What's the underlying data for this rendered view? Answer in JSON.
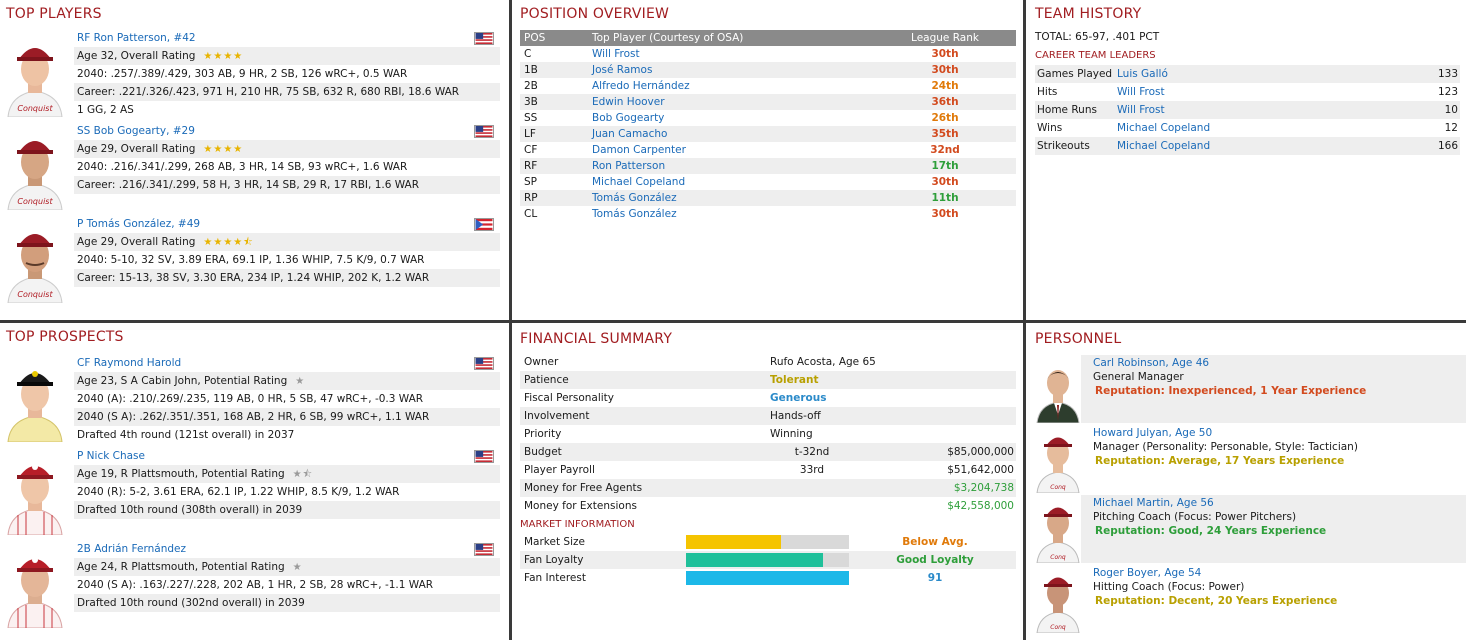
{
  "top_players": {
    "title": "TOP PLAYERS",
    "players": [
      {
        "name": "RF Ron Patterson, #42",
        "age_line": "Age 32, Overall Rating",
        "stars": "★★★★",
        "line2": "2040: .257/.389/.429, 303 AB, 9 HR, 2 SB, 126 wRC+, 0.5 WAR",
        "line3": "Career: .221/.326/.423, 971 H, 210 HR, 75 SB, 632 R, 680 RBI, 18.6 WAR",
        "line4": "1 GG, 2 AS",
        "flag": "usa"
      },
      {
        "name": "SS Bob Gogearty, #29",
        "age_line": "Age 29, Overall Rating",
        "stars": "★★★★",
        "line2": "2040: .216/.341/.299, 268 AB, 3 HR, 14 SB, 93 wRC+, 1.6 WAR",
        "line3": "Career: .216/.341/.299, 58 H, 3 HR, 14 SB, 29 R, 17 RBI, 1.6 WAR",
        "line4": "",
        "flag": "usa"
      },
      {
        "name": "P Tomás González, #49",
        "age_line": "Age 29, Overall Rating",
        "stars": "★★★★⯪",
        "line2": "2040: 5-10, 32 SV, 3.89 ERA, 69.1 IP, 1.36 WHIP, 7.5 K/9, 0.7 WAR",
        "line3": "Career: 15-13, 38 SV, 3.30 ERA, 234 IP, 1.24 WHIP, 202 K, 1.2 WAR",
        "line4": "",
        "flag": "pr"
      }
    ]
  },
  "position_overview": {
    "title": "POSITION OVERVIEW",
    "headers": [
      "POS",
      "Top Player (Courtesy of OSA)",
      "League Rank"
    ],
    "rows": [
      {
        "pos": "C",
        "player": "Will Frost",
        "rank": "30th",
        "cls": "red"
      },
      {
        "pos": "1B",
        "player": "José Ramos",
        "rank": "30th",
        "cls": "red"
      },
      {
        "pos": "2B",
        "player": "Alfredo Hernández",
        "rank": "24th",
        "cls": "orange"
      },
      {
        "pos": "3B",
        "player": "Edwin Hoover",
        "rank": "36th",
        "cls": "red"
      },
      {
        "pos": "SS",
        "player": "Bob Gogearty",
        "rank": "26th",
        "cls": "orange"
      },
      {
        "pos": "LF",
        "player": "Juan Camacho",
        "rank": "35th",
        "cls": "red"
      },
      {
        "pos": "CF",
        "player": "Damon Carpenter",
        "rank": "32nd",
        "cls": "red"
      },
      {
        "pos": "RF",
        "player": "Ron Patterson",
        "rank": "17th",
        "cls": "green"
      },
      {
        "pos": "SP",
        "player": "Michael Copeland",
        "rank": "30th",
        "cls": "red"
      },
      {
        "pos": "RP",
        "player": "Tomás González",
        "rank": "11th",
        "cls": "green"
      },
      {
        "pos": "CL",
        "player": "Tomás González",
        "rank": "30th",
        "cls": "red"
      }
    ]
  },
  "team_history": {
    "title": "TEAM HISTORY",
    "total": "TOTAL: 65-97, .401 PCT",
    "leaders_title": "CAREER TEAM LEADERS",
    "leaders": [
      {
        "stat": "Games Played",
        "player": "Luis Galló",
        "value": "133"
      },
      {
        "stat": "Hits",
        "player": "Will Frost",
        "value": "123"
      },
      {
        "stat": "Home Runs",
        "player": "Will Frost",
        "value": "10"
      },
      {
        "stat": "Wins",
        "player": "Michael Copeland",
        "value": "12"
      },
      {
        "stat": "Strikeouts",
        "player": "Michael Copeland",
        "value": "166"
      }
    ]
  },
  "top_prospects": {
    "title": "TOP PROSPECTS",
    "players": [
      {
        "name": "CF Raymond Harold",
        "age_line": "Age 23, S A Cabin John, Potential Rating",
        "stars": "★",
        "line2": "2040 (A): .210/.269/.235, 119 AB, 0 HR, 5 SB, 47 wRC+, -0.3 WAR",
        "line3": "2040 (S A): .262/.351/.351, 168 AB, 2 HR, 6 SB, 99 wRC+, 1.1 WAR",
        "line4": "Drafted 4th round (121st overall) in 2037",
        "flag": "usa"
      },
      {
        "name": "P Nick Chase",
        "age_line": "Age 19, R Plattsmouth, Potential Rating",
        "stars": "★⯪",
        "line2": "2040 (R): 5-2, 3.61 ERA, 62.1 IP, 1.22 WHIP, 8.5 K/9, 1.2 WAR",
        "line3": "Drafted 10th round (308th overall) in 2039",
        "line4": "",
        "flag": "usa"
      },
      {
        "name": "2B Adrián Fernández",
        "age_line": "Age 24, R Plattsmouth, Potential Rating",
        "stars": "★",
        "line2": "2040 (S A): .163/.227/.228, 202 AB, 1 HR, 2 SB, 28 wRC+, -1.1 WAR",
        "line3": "Drafted 10th round (302nd overall) in 2039",
        "line4": "",
        "flag": "usa"
      }
    ]
  },
  "financial": {
    "title": "FINANCIAL SUMMARY",
    "rows": [
      {
        "label": "Owner",
        "mid": "Rufo Acosta, Age 65",
        "right": "",
        "cls": ""
      },
      {
        "label": "Patience",
        "mid": "Tolerant",
        "right": "",
        "cls": "gold"
      },
      {
        "label": "Fiscal Personality",
        "mid": "Generous",
        "right": "",
        "cls": "blue"
      },
      {
        "label": "Involvement",
        "mid": "Hands-off",
        "right": "",
        "cls": ""
      },
      {
        "label": "Priority",
        "mid": "Winning",
        "right": "",
        "cls": ""
      },
      {
        "label": "Budget",
        "mid": "t-32nd",
        "right": "$85,000,000",
        "cls": ""
      },
      {
        "label": "Player Payroll",
        "mid": "33rd",
        "right": "$51,642,000",
        "cls": ""
      },
      {
        "label": "Money for Free Agents",
        "mid": "",
        "right": "$3,204,738",
        "cls": "green"
      },
      {
        "label": "Money for Extensions",
        "mid": "",
        "right": "$42,558,000",
        "cls": "green"
      }
    ],
    "market_title": "MARKET INFORMATION",
    "market": [
      {
        "label": "Market Size",
        "fill": 0.58,
        "color": "#f5c400",
        "value": "Below Avg.",
        "cls": "orange"
      },
      {
        "label": "Fan Loyalty",
        "fill": 0.84,
        "color": "#1fc09a",
        "value": "Good Loyalty",
        "cls": "green"
      },
      {
        "label": "Fan Interest",
        "fill": 1.0,
        "color": "#1cb8e8",
        "value": "91",
        "cls": "blue"
      }
    ]
  },
  "personnel": {
    "title": "PERSONNEL",
    "staff": [
      {
        "name": "Carl Robinson, Age 46",
        "role": "General Manager",
        "rep": "Reputation: Inexperienced, 1 Year Experience",
        "cls": "red"
      },
      {
        "name": "Howard Julyan, Age 50",
        "role": "Manager (Personality: Personable, Style: Tactician)",
        "rep": "Reputation: Average, 17 Years Experience",
        "cls": "gold"
      },
      {
        "name": "Michael Martin, Age 56",
        "role": "Pitching Coach (Focus: Power Pitchers)",
        "rep": "Reputation: Good, 24 Years Experience",
        "cls": "green"
      },
      {
        "name": "Roger Boyer, Age 54",
        "role": "Hitting Coach (Focus: Power)",
        "rep": "Reputation: Decent, 20 Years Experience",
        "cls": "gold"
      }
    ]
  },
  "colors": {
    "title_red": "#a11d21",
    "link_blue": "#1a6ab8",
    "divider": "#3a3a3a"
  }
}
